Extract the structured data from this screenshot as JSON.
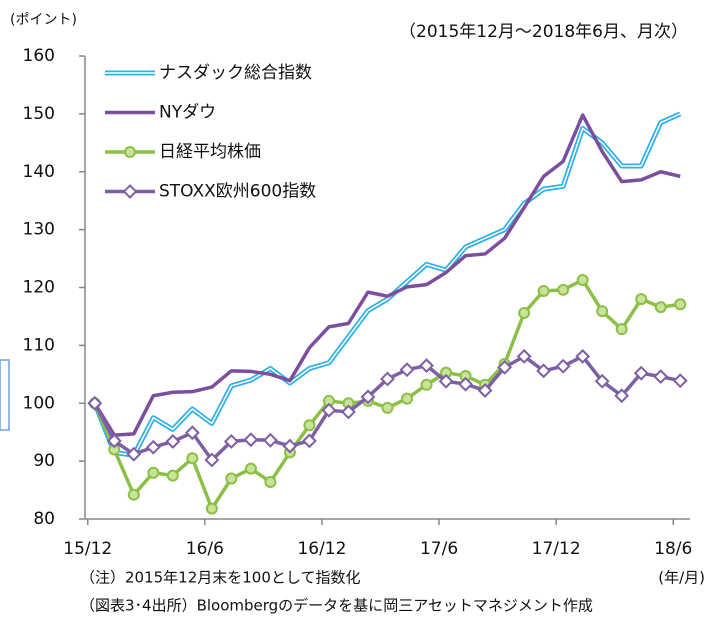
{
  "chart_data": {
    "type": "line",
    "title": "（2015年12月～2018年6月、月次）",
    "y_axis_label": "(ポイント)",
    "x_axis_label": "(年/月)",
    "annotations": [
      "（注）2015年12月末を100として指数化",
      "（図表3･4出所）Bloombergのデータを基に岡三アセットマネジメント作成"
    ],
    "categories": [
      "15/12",
      null,
      null,
      null,
      null,
      null,
      "16/6",
      null,
      null,
      null,
      null,
      null,
      "16/12",
      null,
      null,
      null,
      null,
      null,
      "17/6",
      null,
      null,
      null,
      null,
      null,
      "17/12",
      null,
      null,
      null,
      null,
      null,
      "18/6"
    ],
    "ylim": [
      80,
      160
    ],
    "yticks": [
      80,
      90,
      100,
      110,
      120,
      130,
      140,
      150,
      160
    ],
    "legend": "upper left",
    "series": [
      {
        "name": "ナスダック総合指数",
        "color": "#2fb0e6",
        "marker": "none",
        "values": [
          100,
          91.5,
          91,
          97.5,
          95.5,
          99,
          96.5,
          103,
          104,
          106,
          103.5,
          106,
          107,
          111.5,
          116,
          118,
          121,
          124,
          123,
          127,
          128.5,
          130,
          134.5,
          137,
          137.5,
          147.5,
          145,
          141,
          141,
          148.5,
          150
        ]
      },
      {
        "name": "NYダウ",
        "color": "#7b4f9d",
        "marker": "none",
        "values": [
          100,
          94.5,
          94.7,
          101.3,
          101.9,
          102,
          102.8,
          105.6,
          105.5,
          105,
          103.9,
          109.6,
          113.2,
          113.8,
          119.2,
          118.5,
          120.1,
          120.5,
          122.6,
          125.5,
          125.8,
          128.5,
          133.8,
          139.2,
          141.8,
          149.8,
          143.5,
          138.3,
          138.6,
          140,
          139.2
        ]
      },
      {
        "name": "日経平均株価",
        "color": "#8cbf45",
        "marker": "circle",
        "values": [
          100,
          92,
          84.2,
          88,
          87.5,
          90.5,
          81.8,
          87,
          88.7,
          86.4,
          91.5,
          96.2,
          100.4,
          100,
          100.4,
          99.2,
          100.8,
          103.2,
          105.3,
          104.7,
          103.2,
          106.8,
          115.6,
          119.4,
          119.6,
          121.3,
          115.9,
          112.8,
          118,
          116.6,
          117.1
        ]
      },
      {
        "name": "STOXX欧州600指数",
        "color": "#7e5fa3",
        "marker": "diamond",
        "values": [
          100,
          93.5,
          91.2,
          92.4,
          93.4,
          94.9,
          90.2,
          93.4,
          93.7,
          93.6,
          92.6,
          93.5,
          98.8,
          98.5,
          101.1,
          104.2,
          105.8,
          106.5,
          103.8,
          103.3,
          102.2,
          106.2,
          108.1,
          105.6,
          106.4,
          108.1,
          103.8,
          101.3,
          105.2,
          104.6,
          103.9
        ]
      }
    ]
  }
}
